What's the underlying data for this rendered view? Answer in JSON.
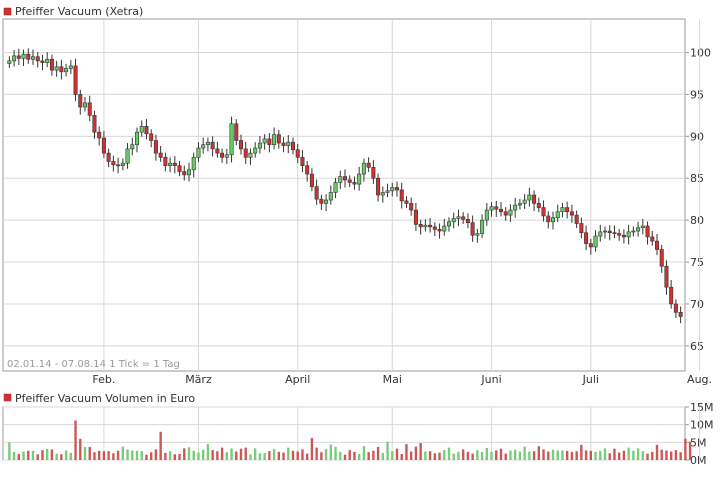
{
  "chart_data": [
    {
      "type": "candlestick",
      "title": "Pfeiffer Vacuum (Xetra)",
      "caption": "02.01.14 - 07.08.14   1 Tick = 1 Tag",
      "ylim": [
        62,
        104
      ],
      "y_ticks": [
        65,
        70,
        75,
        80,
        85,
        90,
        95,
        100
      ],
      "x_ticks": [
        {
          "label": "Feb.",
          "index": 20
        },
        {
          "label": "März",
          "index": 40
        },
        {
          "label": "April",
          "index": 61
        },
        {
          "label": "Mai",
          "index": 81
        },
        {
          "label": "Juni",
          "index": 102
        },
        {
          "label": "Juli",
          "index": 123
        },
        {
          "label": "Aug.",
          "index": 146
        }
      ],
      "grid": true,
      "colors": {
        "up": "#66cc66",
        "down": "#cc3333",
        "grid": "#d8d8d8",
        "axis": "#999999"
      },
      "closes": [
        99.0,
        99.6,
        99.3,
        99.8,
        99.2,
        99.5,
        99.0,
        98.8,
        99.2,
        97.9,
        98.3,
        97.7,
        98.1,
        98.4,
        95.0,
        93.5,
        94.0,
        92.5,
        90.5,
        89.8,
        88.0,
        87.0,
        86.6,
        86.5,
        86.8,
        88.5,
        89.0,
        90.5,
        91.2,
        90.3,
        89.5,
        88.0,
        87.5,
        86.5,
        86.8,
        86.5,
        85.8,
        85.4,
        86.0,
        87.5,
        88.6,
        89.0,
        89.3,
        88.5,
        88.0,
        87.5,
        87.8,
        91.5,
        89.5,
        88.5,
        87.5,
        88.0,
        88.6,
        89.2,
        89.7,
        89.0,
        90.2,
        89.2,
        88.9,
        89.3,
        88.4,
        87.5,
        86.5,
        85.5,
        84.0,
        82.5,
        82.0,
        82.4,
        83.3,
        84.5,
        85.2,
        84.8,
        84.5,
        84.3,
        85.5,
        86.8,
        86.3,
        85.0,
        83.0,
        83.3,
        83.5,
        83.9,
        83.6,
        82.3,
        82.0,
        81.2,
        79.5,
        79.2,
        79.4,
        79.2,
        78.9,
        78.7,
        79.3,
        79.8,
        80.2,
        80.4,
        80.1,
        79.7,
        78.2,
        78.4,
        80.0,
        81.2,
        81.6,
        81.3,
        81.0,
        80.6,
        81.2,
        81.8,
        82.0,
        82.4,
        83.0,
        82.0,
        81.5,
        80.5,
        79.8,
        80.3,
        81.0,
        81.5,
        81.0,
        80.6,
        79.6,
        78.5,
        77.2,
        76.8,
        78.1,
        78.6,
        78.7,
        78.5,
        78.4,
        78.2,
        78.0,
        78.6,
        78.7,
        79.1,
        79.3,
        78.0,
        77.5,
        76.5,
        74.5,
        72.0,
        70.0,
        69.0,
        68.5
      ]
    },
    {
      "type": "bar",
      "title": "Pfeiffer Vacuum Volumen in Euro",
      "ylim": [
        0,
        15
      ],
      "y_ticks": [
        0,
        5,
        10,
        15
      ],
      "y_tick_labels": [
        "0M",
        "5M",
        "10M",
        "15M"
      ],
      "unit": "M",
      "colors": {
        "up": "#77cc77",
        "down": "#cc5555"
      },
      "values": [
        5.0,
        2.3,
        1.7,
        2.4,
        2.6,
        2.6,
        1.6,
        2.8,
        3.1,
        3.0,
        1.8,
        1.6,
        2.7,
        2.0,
        11.2,
        6.0,
        3.7,
        3.7,
        2.2,
        2.6,
        2.5,
        2.5,
        1.9,
        2.6,
        3.8,
        3.0,
        2.7,
        2.6,
        2.5,
        1.5,
        2.2,
        3.0,
        8.0,
        2.0,
        2.5,
        1.6,
        1.7,
        3.3,
        3.6,
        2.6,
        2.1,
        2.9,
        4.5,
        2.8,
        2.5,
        3.5,
        2.2,
        3.3,
        2.4,
        3.2,
        3.5,
        1.6,
        3.3,
        1.9,
        2.0,
        2.5,
        3.1,
        2.3,
        2.1,
        3.5,
        2.6,
        2.4,
        3.0,
        1.8,
        6.2,
        3.5,
        2.2,
        3.1,
        4.4,
        3.7,
        2.3,
        1.5,
        2.8,
        2.3,
        1.7,
        3.9,
        2.2,
        2.6,
        3.7,
        2.0,
        5.2,
        2.5,
        3.2,
        1.7,
        4.5,
        2.4,
        3.8,
        4.8,
        2.4,
        2.5,
        1.9,
        2.1,
        2.8,
        3.5,
        1.8,
        2.3,
        3.0,
        2.3,
        1.8,
        2.8,
        2.3,
        3.4,
        2.3,
        2.7,
        3.2,
        1.8,
        2.7,
        2.9,
        2.4,
        3.8,
        2.4,
        2.5,
        3.9,
        3.0,
        2.4,
        2.9,
        2.7,
        2.7,
        2.6,
        2.3,
        2.5,
        4.3,
        2.7,
        2.6,
        2.3,
        2.6,
        3.3,
        1.9,
        3.2,
        2.1,
        2.6,
        3.5,
        2.6,
        3.3,
        2.5,
        1.8,
        2.3,
        4.3,
        2.9,
        2.7,
        2.4,
        2.8,
        2.2,
        6.0,
        5.2
      ]
    }
  ]
}
